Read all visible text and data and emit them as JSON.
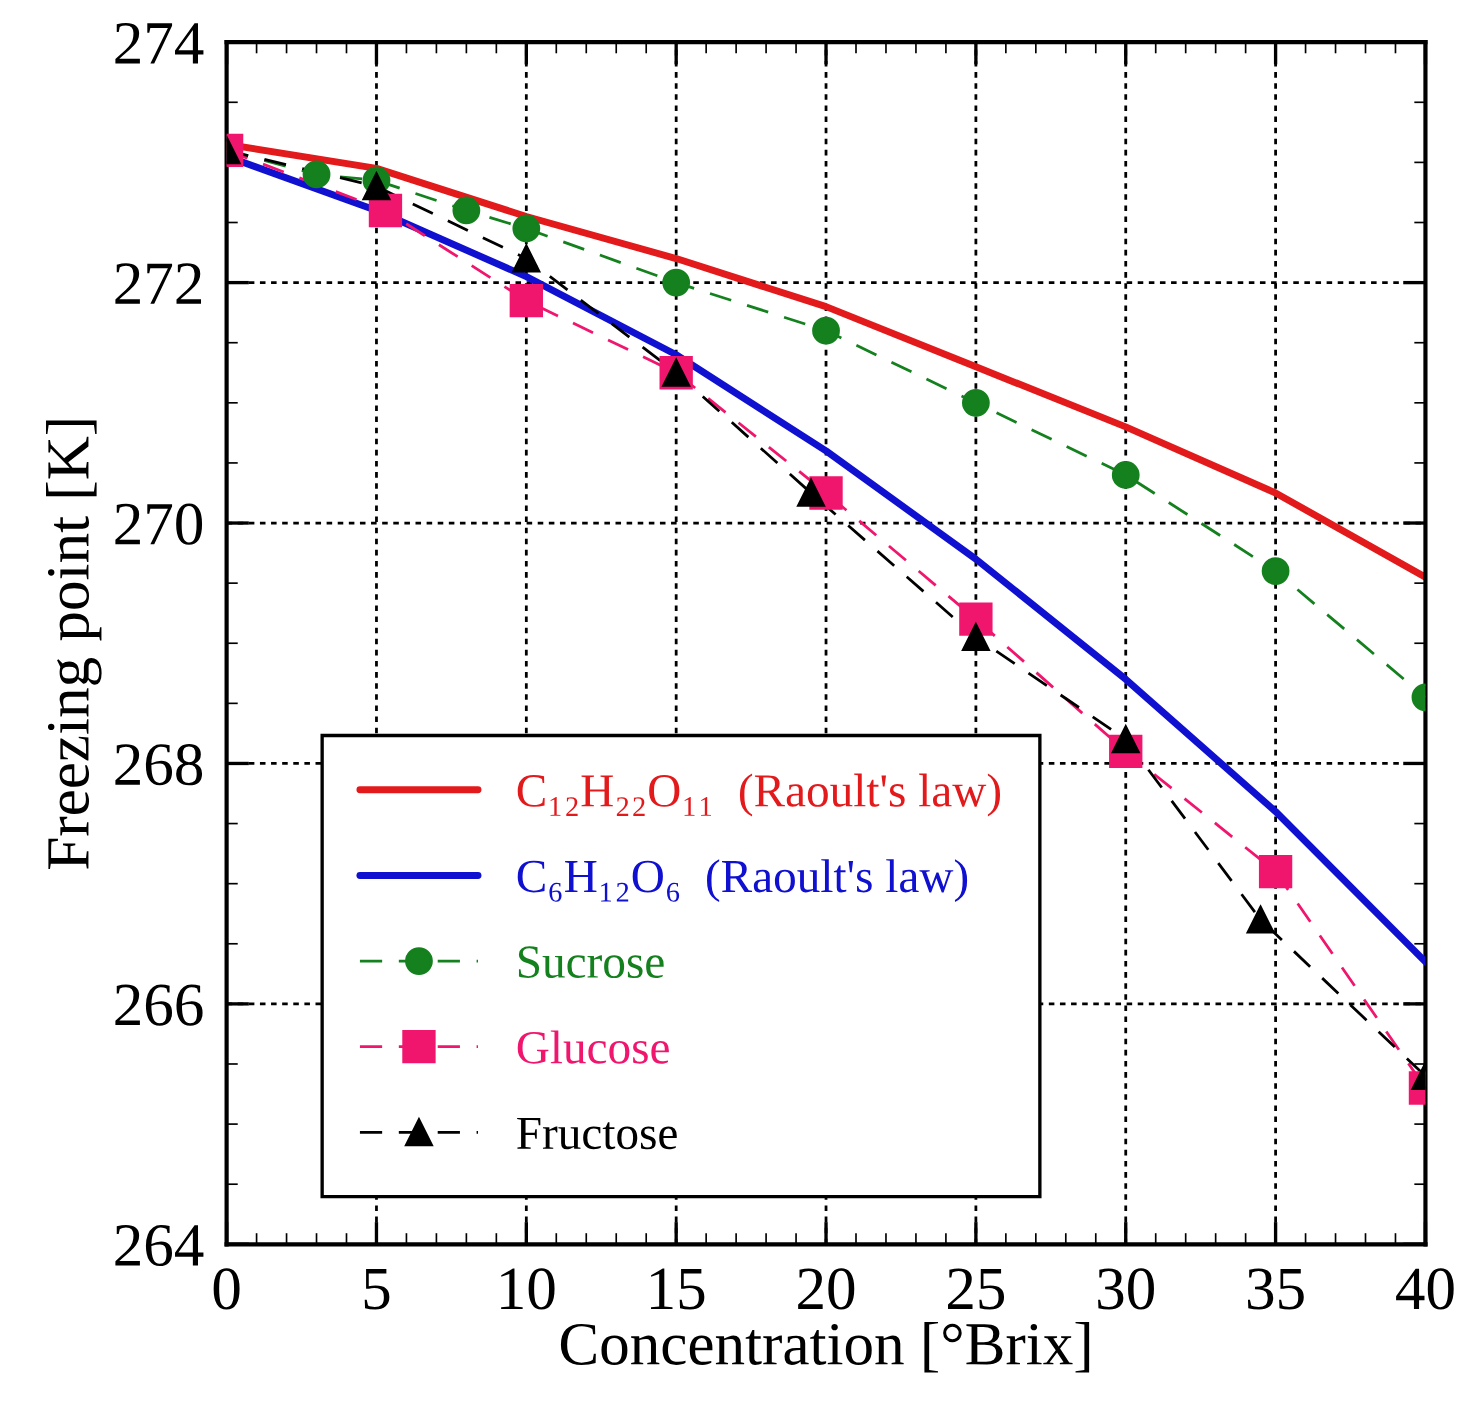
{
  "chart_data": {
    "type": "line",
    "xlabel": "Concentration [°Brix]",
    "ylabel": "Freezing point [K]",
    "xlim": [
      0,
      40
    ],
    "xticks": [
      0,
      5,
      10,
      15,
      20,
      25,
      30,
      35,
      40
    ],
    "ylim": [
      264,
      274
    ],
    "yticks": [
      264,
      266,
      268,
      270,
      272,
      274
    ],
    "grid": true,
    "legend": "bottom left",
    "series": [
      {
        "name": "C₁₂H₂₂O₁₁  (Raoult's law)",
        "color": "#e31a1c",
        "line_style": "solid",
        "marker": "none",
        "x": [
          0,
          5,
          10,
          15,
          20,
          25,
          30,
          35,
          40
        ],
        "values": [
          273.15,
          272.95,
          272.55,
          272.2,
          271.8,
          271.3,
          270.8,
          270.25,
          269.55
        ]
      },
      {
        "name": "C₆H₁₂O₆  (Raoult's law)",
        "color": "#1010d0",
        "line_style": "solid",
        "marker": "none",
        "x": [
          0,
          5,
          10,
          15,
          20,
          25,
          30,
          35,
          40
        ],
        "values": [
          273.05,
          272.6,
          272.05,
          271.4,
          270.6,
          269.7,
          268.7,
          267.6,
          266.35
        ]
      },
      {
        "name": "Sucrose",
        "color": "#14801e",
        "line_style": "dashed",
        "marker": "circle",
        "x": [
          0,
          3,
          5,
          8,
          10,
          15,
          20,
          25,
          30,
          35,
          40
        ],
        "values": [
          273.1,
          272.9,
          272.85,
          272.6,
          272.45,
          272.0,
          271.6,
          271.0,
          270.4,
          269.6,
          268.55
        ]
      },
      {
        "name": "Glucose",
        "color": "#f0166e",
        "line_style": "dashed",
        "marker": "square",
        "x": [
          0,
          5.3,
          10,
          15,
          20,
          25,
          30,
          35,
          40
        ],
        "values": [
          273.1,
          272.6,
          271.85,
          271.25,
          270.25,
          269.2,
          268.1,
          267.1,
          265.3
        ]
      },
      {
        "name": "Fructose",
        "color": "#000000",
        "line_style": "dashed",
        "marker": "triangle",
        "x": [
          0,
          5,
          10,
          15,
          19.5,
          25,
          30,
          34.5,
          40
        ],
        "values": [
          273.1,
          272.8,
          272.2,
          271.25,
          270.25,
          269.05,
          268.2,
          266.7,
          265.4
        ]
      }
    ]
  }
}
